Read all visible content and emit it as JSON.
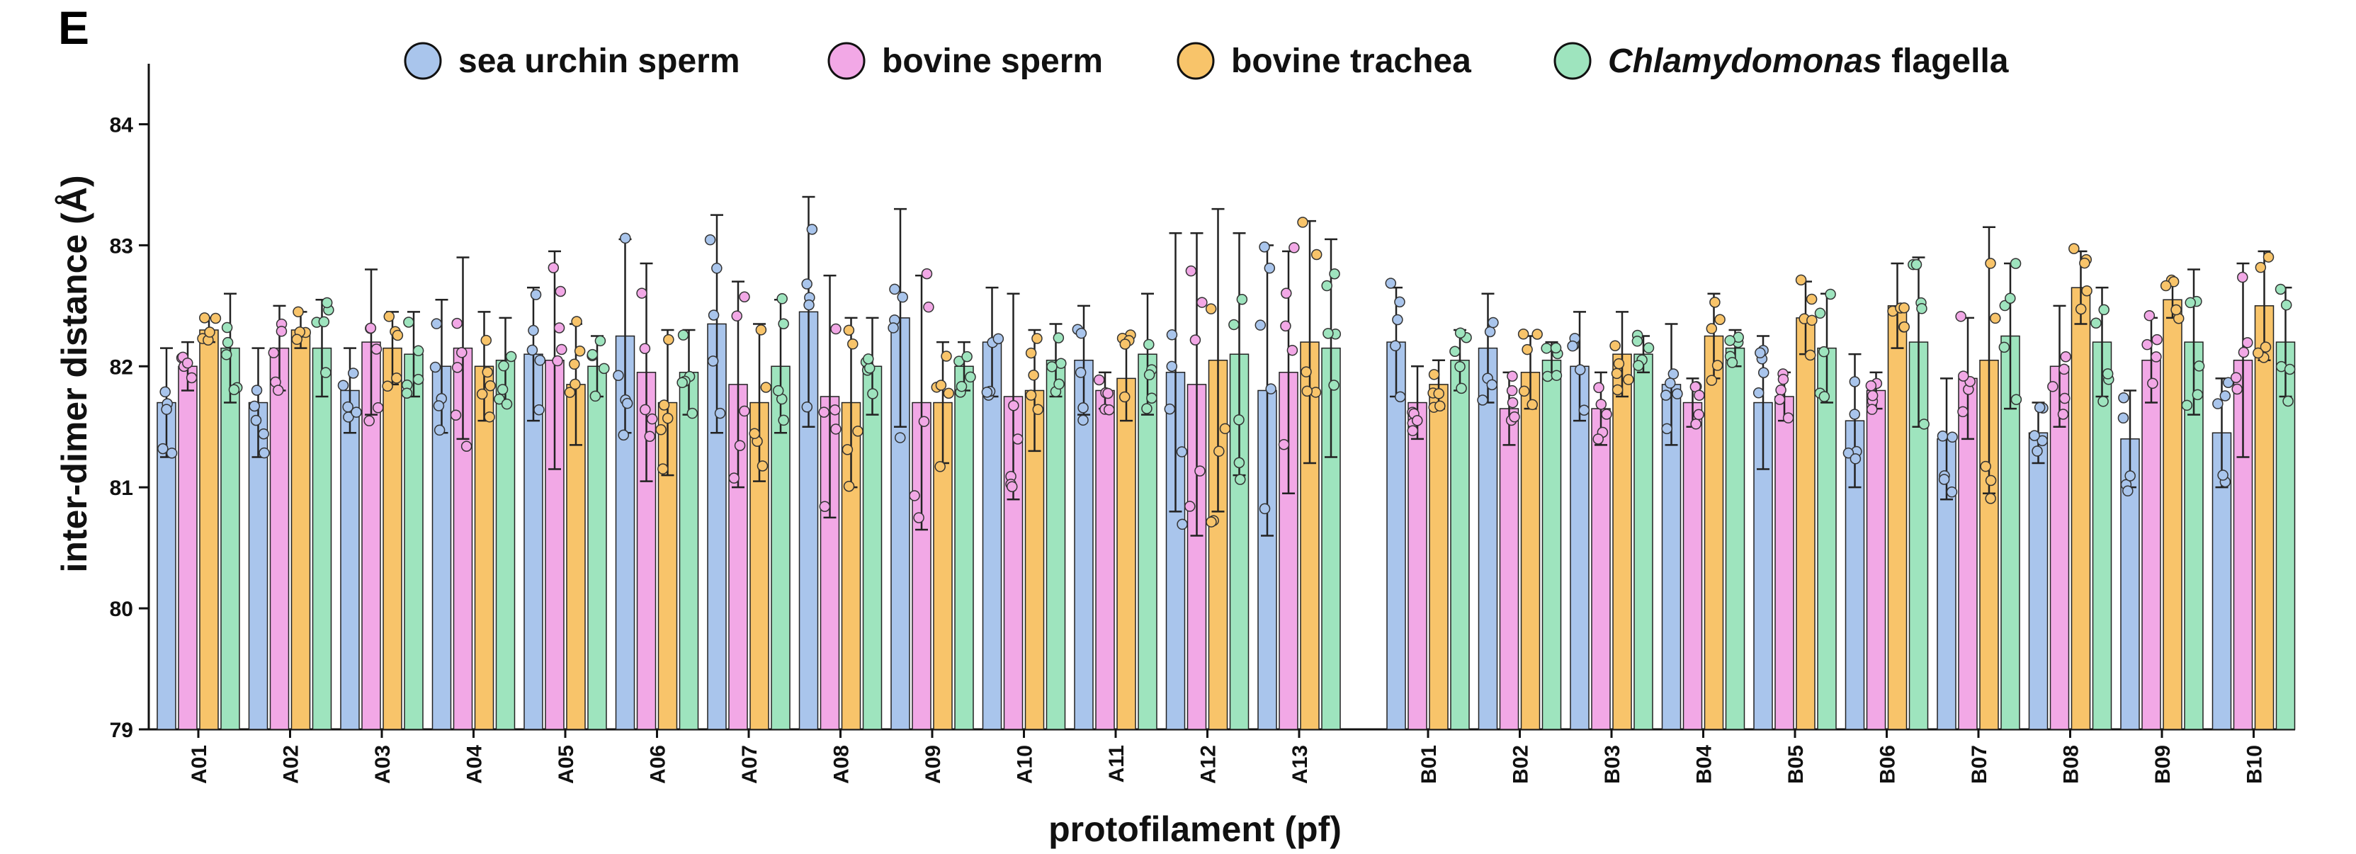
{
  "panel_label": "E",
  "colors": {
    "sea_urchin_sperm": "#A9C5EC",
    "bovine_sperm": "#F2A8E6",
    "bovine_trachea": "#F8C46A",
    "chlamydomonas_flagella": "#9EE4BE",
    "axis": "#111111"
  },
  "chart_data": {
    "type": "bar",
    "title": "",
    "xlabel": "protofilament (pf)",
    "ylabel": "inter-dimer distance (Å)",
    "ylim": [
      79,
      84.5
    ],
    "yticks": [
      "79",
      "80",
      "81",
      "82",
      "83",
      "84"
    ],
    "legend_position": "top",
    "legend": [
      {
        "name": "sea urchin sperm",
        "italic_prefix": "",
        "rest": "sea urchin sperm"
      },
      {
        "name": "bovine sperm",
        "italic_prefix": "",
        "rest": "bovine sperm"
      },
      {
        "name": "bovine trachea",
        "italic_prefix": "",
        "rest": "bovine trachea"
      },
      {
        "name": "Chlamydomonas flagella",
        "italic_prefix": "Chlamydomonas",
        "rest": " flagella"
      }
    ],
    "categories": [
      "A01",
      "A02",
      "A03",
      "A04",
      "A05",
      "A06",
      "A07",
      "A08",
      "A09",
      "A10",
      "A11",
      "A12",
      "A13",
      "B01",
      "B02",
      "B03",
      "B04",
      "B05",
      "B06",
      "B07",
      "B08",
      "B09",
      "B10"
    ],
    "series": [
      {
        "name": "sea urchin sperm",
        "values": [
          81.7,
          81.7,
          81.8,
          82.0,
          82.1,
          82.25,
          82.35,
          82.45,
          82.4,
          82.2,
          82.05,
          81.95,
          81.8,
          82.2,
          82.15,
          82.0,
          81.85,
          81.7,
          81.55,
          81.4,
          81.45,
          81.4,
          81.45
        ],
        "errors": [
          0.45,
          0.45,
          0.35,
          0.55,
          0.55,
          0.8,
          0.9,
          0.95,
          0.9,
          0.45,
          0.45,
          1.15,
          1.2,
          0.45,
          0.45,
          0.45,
          0.5,
          0.55,
          0.55,
          0.5,
          0.25,
          0.4,
          0.45
        ]
      },
      {
        "name": "bovine sperm",
        "values": [
          82.0,
          82.15,
          82.2,
          82.15,
          82.05,
          81.95,
          81.85,
          81.75,
          81.7,
          81.75,
          81.8,
          81.85,
          81.95,
          81.7,
          81.65,
          81.65,
          81.7,
          81.75,
          81.8,
          81.9,
          82.0,
          82.05,
          82.05
        ],
        "errors": [
          0.2,
          0.35,
          0.6,
          0.75,
          0.9,
          0.9,
          0.85,
          1.0,
          1.05,
          0.85,
          0.15,
          1.25,
          1.0,
          0.3,
          0.3,
          0.3,
          0.2,
          0.2,
          0.15,
          0.5,
          0.5,
          0.35,
          0.8
        ]
      },
      {
        "name": "bovine trachea",
        "values": [
          82.3,
          82.3,
          82.15,
          82.0,
          81.85,
          81.7,
          81.7,
          81.7,
          81.7,
          81.8,
          81.9,
          82.05,
          82.2,
          81.85,
          81.95,
          82.1,
          82.25,
          82.4,
          82.5,
          82.05,
          82.65,
          82.55,
          82.5
        ],
        "errors": [
          0.1,
          0.15,
          0.3,
          0.45,
          0.5,
          0.6,
          0.65,
          0.7,
          0.5,
          0.5,
          0.35,
          1.25,
          1.0,
          0.2,
          0.3,
          0.35,
          0.35,
          0.3,
          0.35,
          1.1,
          0.3,
          0.15,
          0.45
        ]
      },
      {
        "name": "Chlamydomonas flagella",
        "values": [
          82.15,
          82.15,
          82.1,
          82.05,
          82.0,
          81.95,
          82.0,
          82.0,
          82.0,
          82.05,
          82.1,
          82.1,
          82.15,
          82.05,
          82.05,
          82.1,
          82.15,
          82.15,
          82.2,
          82.25,
          82.2,
          82.2,
          82.2
        ],
        "errors": [
          0.45,
          0.4,
          0.35,
          0.35,
          0.25,
          0.35,
          0.55,
          0.4,
          0.2,
          0.3,
          0.5,
          1.0,
          0.9,
          0.25,
          0.15,
          0.15,
          0.15,
          0.45,
          0.7,
          0.6,
          0.45,
          0.6,
          0.45
        ]
      }
    ]
  }
}
